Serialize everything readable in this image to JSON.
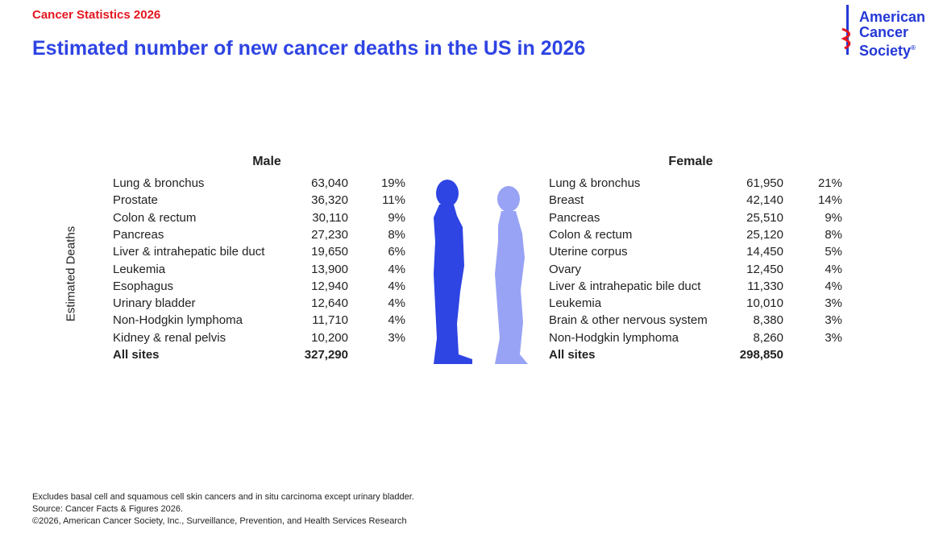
{
  "header": {
    "kicker": "Cancer Statistics 2026",
    "title": "Estimated number of new cancer deaths in the US in 2026"
  },
  "logo": {
    "lines": [
      "American",
      "Cancer",
      "Society"
    ],
    "mark": "®"
  },
  "side_label": "Estimated Deaths",
  "tables": [
    {
      "heading": "Male",
      "rows": [
        [
          "Lung & bronchus",
          "63,040",
          "19%"
        ],
        [
          "Prostate",
          "36,320",
          "11%"
        ],
        [
          "Colon & rectum",
          "30,110",
          "9%"
        ],
        [
          "Pancreas",
          "27,230",
          "8%"
        ],
        [
          "Liver & intrahepatic bile duct",
          "19,650",
          "6%"
        ],
        [
          "Leukemia",
          "13,900",
          "4%"
        ],
        [
          "Esophagus",
          "12,940",
          "4%"
        ],
        [
          "Urinary bladder",
          "12,640",
          "4%"
        ],
        [
          "Non-Hodgkin lymphoma",
          "11,710",
          "4%"
        ],
        [
          "Kidney & renal pelvis",
          "10,200",
          "3%"
        ]
      ],
      "total": [
        "All sites",
        "327,290"
      ]
    },
    {
      "heading": "Female",
      "rows": [
        [
          "Lung & bronchus",
          "61,950",
          "21%"
        ],
        [
          "Breast",
          "42,140",
          "14%"
        ],
        [
          "Pancreas",
          "25,510",
          "9%"
        ],
        [
          "Colon & rectum",
          "25,120",
          "8%"
        ],
        [
          "Uterine corpus",
          "14,450",
          "5%"
        ],
        [
          "Ovary",
          "12,450",
          "4%"
        ],
        [
          "Liver & intrahepatic bile duct",
          "11,330",
          "4%"
        ],
        [
          "Leukemia",
          "10,010",
          "3%"
        ],
        [
          "Brain & other nervous system",
          "8,380",
          "3%"
        ],
        [
          "Non-Hodgkin lymphoma",
          "8,260",
          "3%"
        ]
      ],
      "total": [
        "All sites",
        "298,850"
      ]
    }
  ],
  "footnotes": [
    "Excludes basal cell and squamous cell skin cancers and in situ carcinoma except urinary bladder.",
    "Source: Cancer Facts & Figures 2026.",
    "©2026, American Cancer Society, Inc., Surveillance, Prevention, and Health Services Research"
  ]
}
